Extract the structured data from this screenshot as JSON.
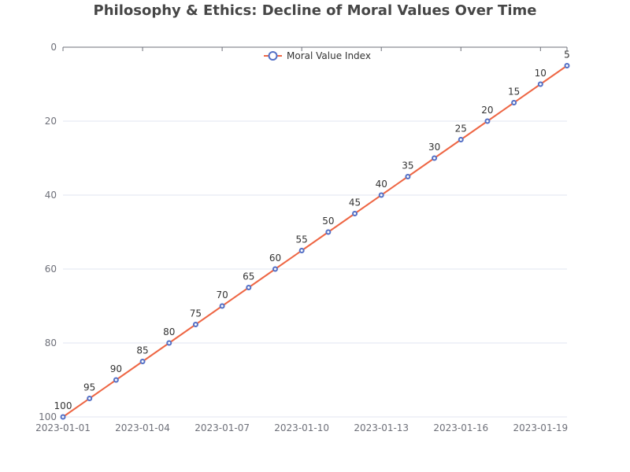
{
  "chart_data": {
    "type": "line",
    "title": "Philosophy & Ethics: Decline of Moral Values Over Time",
    "xlabel": "",
    "ylabel": "",
    "x": [
      "2023-01-01",
      "2023-01-02",
      "2023-01-03",
      "2023-01-04",
      "2023-01-05",
      "2023-01-06",
      "2023-01-07",
      "2023-01-08",
      "2023-01-09",
      "2023-01-10",
      "2023-01-11",
      "2023-01-12",
      "2023-01-13",
      "2023-01-14",
      "2023-01-15",
      "2023-01-16",
      "2023-01-17",
      "2023-01-18",
      "2023-01-19",
      "2023-01-20"
    ],
    "x_tick_labels": [
      "2023-01-01",
      "2023-01-04",
      "2023-01-07",
      "2023-01-10",
      "2023-01-13",
      "2023-01-16",
      "2023-01-19"
    ],
    "y_tick_labels": [
      "0",
      "20",
      "40",
      "60",
      "80",
      "100"
    ],
    "ylim": [
      0,
      100
    ],
    "y_inverted": true,
    "grid": true,
    "legend_position": "top-center",
    "series": [
      {
        "name": "Moral Value Index",
        "values": [
          100,
          95,
          90,
          85,
          80,
          75,
          70,
          65,
          60,
          55,
          50,
          45,
          40,
          35,
          30,
          25,
          20,
          15,
          10,
          5
        ],
        "line_color": "#ee6644",
        "marker_color": "#5470c6"
      }
    ]
  }
}
